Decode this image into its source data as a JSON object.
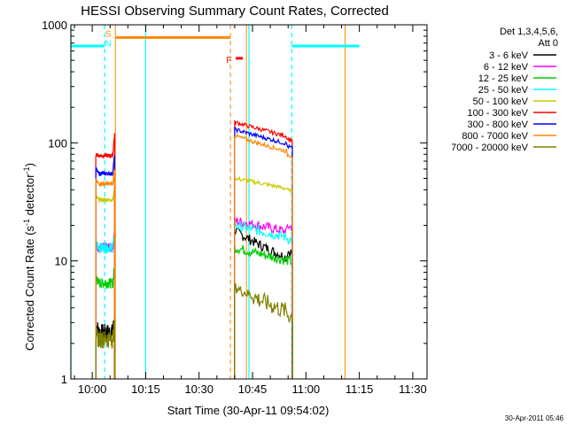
{
  "chart_data": {
    "type": "line",
    "title": "HESSI Observing Summary Count Rates, Corrected",
    "xlabel": "Start Time (30-Apr-11 09:54:02)",
    "ylabel_main": "Corrected Count Rate (s",
    "ylabel_sup1": "-1",
    "ylabel_mid": " detector",
    "ylabel_sup2": "-1",
    "ylabel_end": ")",
    "x_range_min": [
      0,
      100
    ],
    "y_log": true,
    "y_range": [
      1,
      1000
    ],
    "x_ticks": [
      {
        "m": 6,
        "label": "10:00"
      },
      {
        "m": 21,
        "label": "10:15"
      },
      {
        "m": 36,
        "label": "10:30"
      },
      {
        "m": 51,
        "label": "10:45"
      },
      {
        "m": 66,
        "label": "11:00"
      },
      {
        "m": 81,
        "label": "11:15"
      },
      {
        "m": 96,
        "label": "11:30"
      }
    ],
    "y_ticks": [
      {
        "v": 1,
        "label": "1"
      },
      {
        "v": 10,
        "label": "10"
      },
      {
        "v": 100,
        "label": "100"
      },
      {
        "v": 1000,
        "label": "1000"
      }
    ],
    "legend": {
      "header1": "Det 1,3,4,5,6,",
      "header2": "Att 0",
      "entries": [
        {
          "label": "3 - 6 keV",
          "color": "#000000"
        },
        {
          "label": "6 - 12 keV",
          "color": "#ff00ff"
        },
        {
          "label": "12 - 25 keV",
          "color": "#00cc00"
        },
        {
          "label": "25 - 50 keV",
          "color": "#00ffff"
        },
        {
          "label": "50 - 100 keV",
          "color": "#cccc00"
        },
        {
          "label": "100 - 300 keV",
          "color": "#ff0000"
        },
        {
          "label": "300 - 800 keV",
          "color": "#0000ff"
        },
        {
          "label": "800 - 7000 keV",
          "color": "#ff8800"
        },
        {
          "label": "7000 - 20000 keV",
          "color": "#808000"
        }
      ]
    },
    "markers": {
      "night_color": "#00ffff",
      "saa_color": "#ff8800",
      "flare_color": "#ff0000",
      "night_lines": [
        0,
        9.5,
        21,
        50,
        62
      ],
      "night_lines_dashed": [
        9.5,
        62
      ],
      "saa_lines": [
        12.5,
        44.8
      ],
      "saa_dashed": [
        44.8
      ],
      "orange_lines": [
        49.3,
        77
      ],
      "night_bars": [
        [
          0,
          9.5,
          660
        ],
        [
          81,
          62,
          660
        ]
      ],
      "saa_bar": [
        12.5,
        44.8,
        780
      ],
      "flare_bar": [
        46.3,
        48.3,
        520
      ],
      "labels": [
        {
          "text": "S",
          "m": 10.5,
          "v": 850,
          "color": "#ff8800"
        },
        {
          "text": "N",
          "m": 10.5,
          "v": 700,
          "color": "#00ffff"
        },
        {
          "text": "F",
          "m": 44.4,
          "v": 510,
          "color": "#ff0000"
        }
      ]
    },
    "segments": [
      {
        "x0": 7,
        "x1": 12.3
      },
      {
        "x0": 46,
        "x1": 62.2
      }
    ],
    "series_levels": [
      {
        "name": "3 - 6 keV",
        "a": [
          3.0,
          2.5,
          3.5
        ],
        "b": [
          18,
          8,
          11
        ]
      },
      {
        "name": "6 - 12 keV",
        "a": [
          14,
          13,
          18
        ],
        "b": [
          22,
          18,
          22
        ]
      },
      {
        "name": "12 - 25 keV",
        "a": [
          7.5,
          6.5,
          9
        ],
        "b": [
          13,
          10,
          10
        ]
      },
      {
        "name": "25 - 50 keV",
        "a": [
          14,
          13,
          16
        ],
        "b": [
          20,
          16,
          15
        ]
      },
      {
        "name": "50 - 100 keV",
        "a": [
          35,
          33,
          40
        ],
        "b": [
          50,
          42,
          40
        ]
      },
      {
        "name": "100 - 300 keV",
        "a": [
          80,
          78,
          120
        ],
        "b": [
          150,
          110,
          100
        ]
      },
      {
        "name": "300 - 800 keV",
        "a": [
          60,
          55,
          80
        ],
        "b": [
          130,
          95,
          85
        ]
      },
      {
        "name": "800 - 7000 keV",
        "a": [
          48,
          45,
          60
        ],
        "b": [
          115,
          80,
          70
        ]
      },
      {
        "name": "7000 - 20000 keV",
        "a": [
          2.3,
          2.2,
          2.8
        ],
        "b": [
          6,
          3,
          2.6
        ]
      }
    ],
    "timestamp": "30-Apr-2011 05:46"
  }
}
